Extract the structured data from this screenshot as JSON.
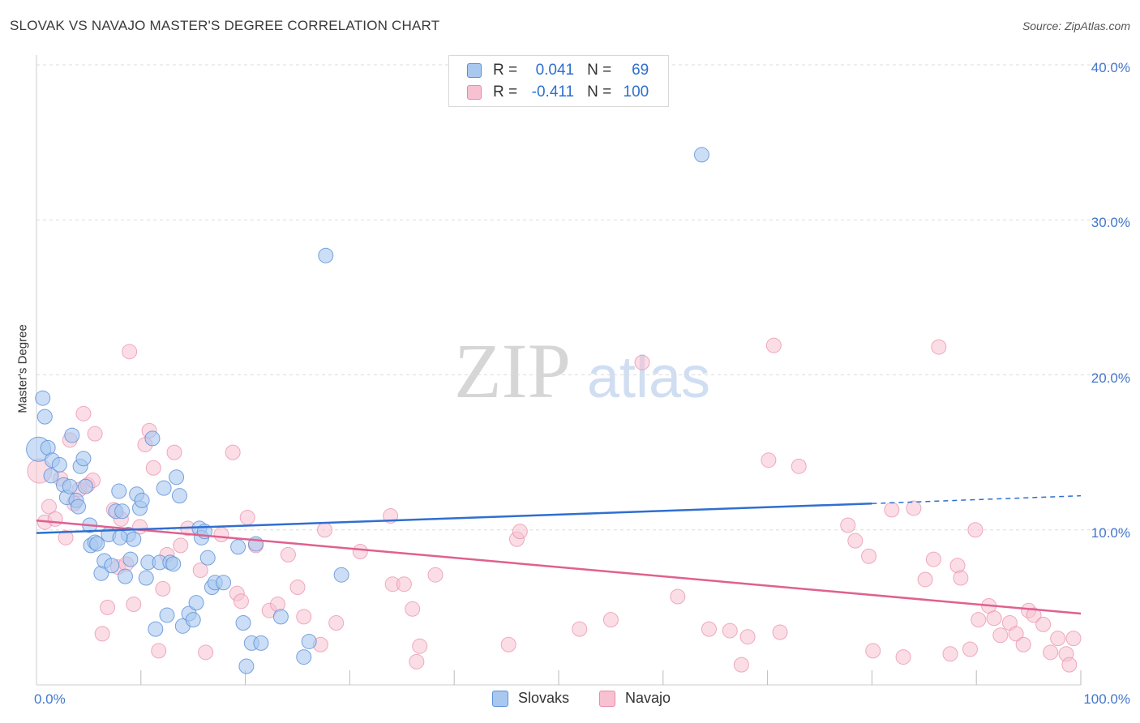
{
  "header": {
    "title": "SLOVAK VS NAVAJO MASTER'S DEGREE CORRELATION CHART",
    "source": "Source: ZipAtlas.com"
  },
  "legend_top": [
    {
      "r_label": "R =",
      "r_value": "0.041",
      "n_label": "N =",
      "n_value": "69"
    },
    {
      "r_label": "R =",
      "r_value": "-0.411",
      "n_label": "N =",
      "n_value": "100"
    }
  ],
  "colors": {
    "slovak_fill": "#a9c8f0",
    "slovak_stroke": "#5b8fd6",
    "slovak_line": "#2f6fd0",
    "navajo_fill": "#f7c1d2",
    "navajo_stroke": "#e88aa8",
    "navajo_line": "#e0608f",
    "tick_text": "#4477cc",
    "grid": "#dddddd"
  },
  "chart_data": {
    "type": "scatter",
    "title": "SLOVAK VS NAVAJO MASTER'S DEGREE CORRELATION CHART",
    "xlabel": "",
    "ylabel": "Master's Degree",
    "xlim": [
      0,
      100
    ],
    "ylim": [
      0,
      40
    ],
    "x_tick_labels": [
      "0.0%",
      "100.0%"
    ],
    "y_ticks": [
      10,
      20,
      30,
      40
    ],
    "y_tick_labels": [
      "10.0%",
      "20.0%",
      "30.0%",
      "40.0%"
    ],
    "legend": [
      "Slovaks",
      "Navajo"
    ],
    "series": [
      {
        "name": "Slovaks",
        "r": 0.041,
        "n": 69,
        "trend": {
          "x0": 0,
          "y0": 9.8,
          "x1": 80,
          "y1": 11.7,
          "dashed_to_x": 100,
          "dashed_to_y": 12.2
        },
        "points": [
          [
            0.2,
            15.2
          ],
          [
            0.6,
            18.5
          ],
          [
            0.8,
            17.3
          ],
          [
            1.1,
            15.3
          ],
          [
            1.5,
            14.5
          ],
          [
            1.4,
            13.5
          ],
          [
            2.2,
            14.2
          ],
          [
            2.6,
            12.9
          ],
          [
            2.9,
            12.1
          ],
          [
            3.2,
            12.8
          ],
          [
            3.4,
            16.1
          ],
          [
            3.8,
            11.9
          ],
          [
            4.2,
            14.1
          ],
          [
            4.5,
            14.6
          ],
          [
            4.7,
            12.8
          ],
          [
            5.1,
            10.3
          ],
          [
            5.2,
            9.0
          ],
          [
            5.6,
            9.2
          ],
          [
            5.8,
            9.1
          ],
          [
            6.2,
            7.2
          ],
          [
            6.5,
            8.0
          ],
          [
            6.9,
            9.7
          ],
          [
            7.2,
            7.7
          ],
          [
            7.6,
            11.2
          ],
          [
            7.9,
            12.5
          ],
          [
            8.2,
            11.2
          ],
          [
            8.5,
            7.0
          ],
          [
            8.8,
            9.7
          ],
          [
            9.0,
            8.1
          ],
          [
            9.3,
            9.4
          ],
          [
            9.6,
            12.3
          ],
          [
            9.9,
            11.4
          ],
          [
            10.1,
            11.9
          ],
          [
            10.5,
            6.9
          ],
          [
            10.7,
            7.9
          ],
          [
            11.1,
            15.9
          ],
          [
            11.4,
            3.6
          ],
          [
            11.8,
            7.9
          ],
          [
            12.2,
            12.7
          ],
          [
            12.5,
            4.5
          ],
          [
            12.8,
            7.9
          ],
          [
            13.1,
            7.8
          ],
          [
            13.4,
            13.4
          ],
          [
            13.7,
            12.2
          ],
          [
            14.0,
            3.8
          ],
          [
            14.6,
            4.6
          ],
          [
            15.0,
            4.2
          ],
          [
            15.3,
            5.3
          ],
          [
            15.6,
            10.1
          ],
          [
            15.8,
            9.5
          ],
          [
            16.1,
            9.9
          ],
          [
            16.4,
            8.2
          ],
          [
            16.8,
            6.3
          ],
          [
            17.1,
            6.6
          ],
          [
            17.9,
            6.6
          ],
          [
            19.3,
            8.9
          ],
          [
            19.8,
            4.0
          ],
          [
            20.1,
            1.2
          ],
          [
            20.6,
            2.7
          ],
          [
            21.0,
            9.1
          ],
          [
            21.5,
            2.7
          ],
          [
            23.4,
            4.4
          ],
          [
            25.6,
            1.8
          ],
          [
            26.1,
            2.8
          ],
          [
            27.7,
            27.7
          ],
          [
            29.2,
            7.1
          ],
          [
            63.7,
            34.2
          ],
          [
            4.0,
            11.5
          ],
          [
            8.0,
            9.5
          ]
        ]
      },
      {
        "name": "Navajo",
        "r": -0.411,
        "n": 100,
        "trend": {
          "x0": 0,
          "y0": 10.6,
          "x1": 100,
          "y1": 4.6
        },
        "points": [
          [
            0.3,
            13.8
          ],
          [
            0.8,
            10.5
          ],
          [
            1.2,
            11.5
          ],
          [
            1.8,
            10.7
          ],
          [
            2.3,
            13.3
          ],
          [
            2.8,
            9.5
          ],
          [
            3.2,
            15.8
          ],
          [
            3.6,
            11.7
          ],
          [
            4.1,
            12.6
          ],
          [
            4.5,
            17.5
          ],
          [
            4.9,
            12.9
          ],
          [
            5.4,
            13.2
          ],
          [
            5.6,
            16.2
          ],
          [
            6.3,
            3.3
          ],
          [
            6.8,
            5.0
          ],
          [
            7.4,
            11.3
          ],
          [
            7.8,
            7.6
          ],
          [
            8.1,
            10.7
          ],
          [
            8.6,
            7.8
          ],
          [
            8.9,
            21.5
          ],
          [
            9.3,
            5.2
          ],
          [
            9.9,
            10.2
          ],
          [
            10.4,
            15.5
          ],
          [
            10.8,
            16.4
          ],
          [
            11.2,
            14.0
          ],
          [
            11.7,
            2.2
          ],
          [
            12.1,
            6.2
          ],
          [
            12.5,
            8.4
          ],
          [
            13.2,
            15.0
          ],
          [
            13.8,
            9.0
          ],
          [
            14.5,
            10.1
          ],
          [
            15.7,
            7.4
          ],
          [
            16.2,
            2.1
          ],
          [
            17.7,
            9.7
          ],
          [
            18.8,
            15.0
          ],
          [
            19.2,
            5.9
          ],
          [
            19.6,
            5.4
          ],
          [
            20.2,
            10.8
          ],
          [
            21.0,
            9.0
          ],
          [
            22.3,
            4.8
          ],
          [
            23.1,
            5.2
          ],
          [
            24.1,
            8.4
          ],
          [
            25.0,
            6.3
          ],
          [
            25.6,
            4.4
          ],
          [
            27.2,
            2.6
          ],
          [
            27.6,
            10.0
          ],
          [
            28.7,
            4.0
          ],
          [
            31.0,
            8.6
          ],
          [
            33.9,
            10.9
          ],
          [
            34.1,
            6.5
          ],
          [
            35.2,
            6.5
          ],
          [
            36.0,
            4.9
          ],
          [
            36.4,
            1.5
          ],
          [
            36.7,
            2.5
          ],
          [
            38.2,
            7.1
          ],
          [
            45.2,
            2.6
          ],
          [
            46.0,
            9.4
          ],
          [
            46.3,
            9.9
          ],
          [
            52.0,
            3.6
          ],
          [
            55.0,
            4.2
          ],
          [
            58.0,
            20.8
          ],
          [
            61.4,
            5.7
          ],
          [
            64.4,
            3.6
          ],
          [
            66.4,
            3.5
          ],
          [
            67.5,
            1.3
          ],
          [
            68.1,
            3.1
          ],
          [
            70.1,
            14.5
          ],
          [
            70.6,
            21.9
          ],
          [
            71.2,
            3.4
          ],
          [
            73.0,
            14.1
          ],
          [
            77.7,
            10.3
          ],
          [
            78.4,
            9.3
          ],
          [
            79.7,
            8.3
          ],
          [
            80.1,
            2.2
          ],
          [
            81.9,
            11.3
          ],
          [
            83.0,
            1.8
          ],
          [
            84.0,
            11.4
          ],
          [
            85.1,
            6.8
          ],
          [
            85.9,
            8.1
          ],
          [
            86.4,
            21.8
          ],
          [
            87.5,
            2.0
          ],
          [
            88.2,
            7.7
          ],
          [
            88.5,
            6.9
          ],
          [
            89.4,
            2.3
          ],
          [
            89.9,
            10.0
          ],
          [
            90.2,
            4.2
          ],
          [
            91.2,
            5.1
          ],
          [
            91.7,
            4.3
          ],
          [
            92.3,
            3.2
          ],
          [
            93.2,
            4.0
          ],
          [
            93.8,
            3.3
          ],
          [
            94.5,
            2.6
          ],
          [
            95.0,
            4.8
          ],
          [
            95.5,
            4.5
          ],
          [
            96.4,
            3.9
          ],
          [
            97.1,
            2.1
          ],
          [
            97.8,
            3.0
          ],
          [
            98.6,
            2.0
          ],
          [
            99.3,
            3.0
          ],
          [
            98.9,
            1.3
          ]
        ]
      }
    ]
  }
}
